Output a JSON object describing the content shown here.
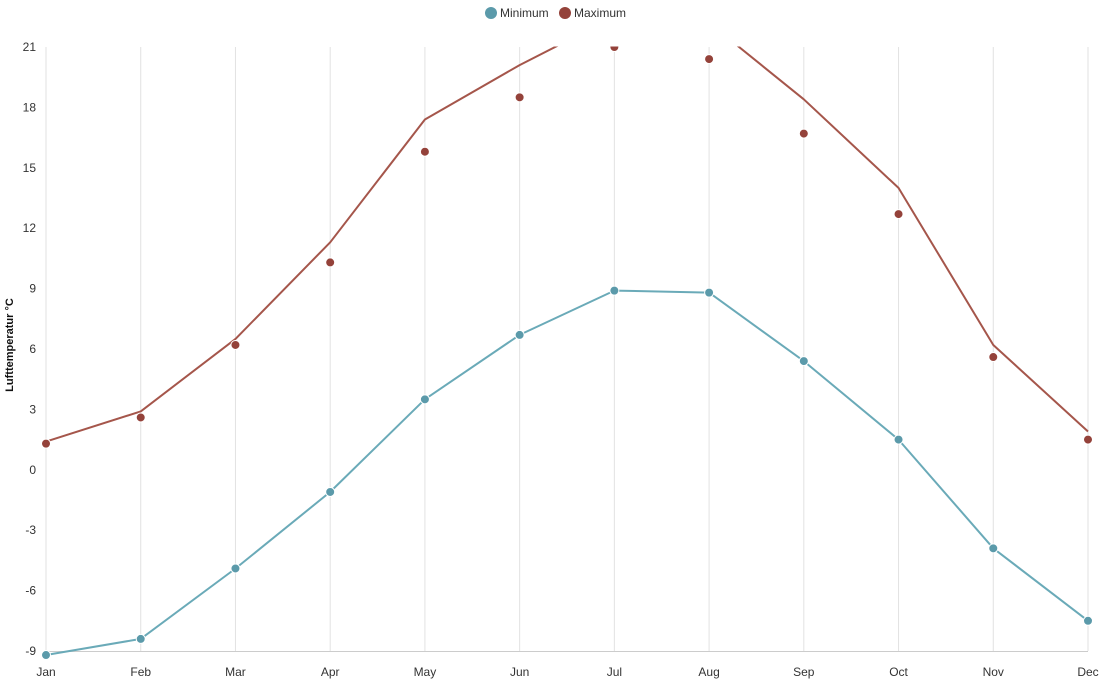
{
  "colors": {
    "minimum": "#6aaab8",
    "minimum_marker": "#5b9aaa",
    "maximum": "#a5564b",
    "maximum_marker": "#94423a",
    "grid": "#e2e2e2",
    "axis": "#cccccc",
    "text": "#333333"
  },
  "chart_data": {
    "type": "line",
    "title": "",
    "xlabel": "",
    "ylabel": "Lufttemperatur °C",
    "categories": [
      "Jan",
      "Feb",
      "Mar",
      "Apr",
      "May",
      "Jun",
      "Jul",
      "Aug",
      "Sep",
      "Oct",
      "Nov",
      "Dec"
    ],
    "ylim": [
      -9,
      21
    ],
    "yticks": [
      "-9",
      "-6",
      "-3",
      "0",
      "3",
      "6",
      "9",
      "12",
      "15",
      "18",
      "21"
    ],
    "grid": "vertical",
    "legend_position": "top-center",
    "series": [
      {
        "name": "Minimum",
        "color_key": "minimum",
        "line_values": [
          -9.2,
          -8.4,
          -4.9,
          -1.1,
          3.5,
          6.7,
          8.9,
          8.8,
          5.4,
          1.5,
          -3.9,
          -7.5
        ],
        "marker_values": [
          -9.2,
          -8.4,
          -4.9,
          -1.1,
          3.5,
          6.7,
          8.9,
          8.8,
          5.4,
          1.5,
          -3.9,
          -7.5
        ]
      },
      {
        "name": "Maximum",
        "color_key": "maximum",
        "line_values": [
          1.4,
          2.9,
          6.5,
          11.3,
          17.4,
          20.1,
          22.5,
          22.2,
          18.4,
          14.0,
          6.2,
          1.9
        ],
        "marker_values": [
          1.3,
          2.6,
          6.2,
          10.3,
          15.8,
          18.5,
          21.0,
          20.4,
          16.7,
          12.7,
          5.6,
          1.5
        ]
      }
    ]
  }
}
